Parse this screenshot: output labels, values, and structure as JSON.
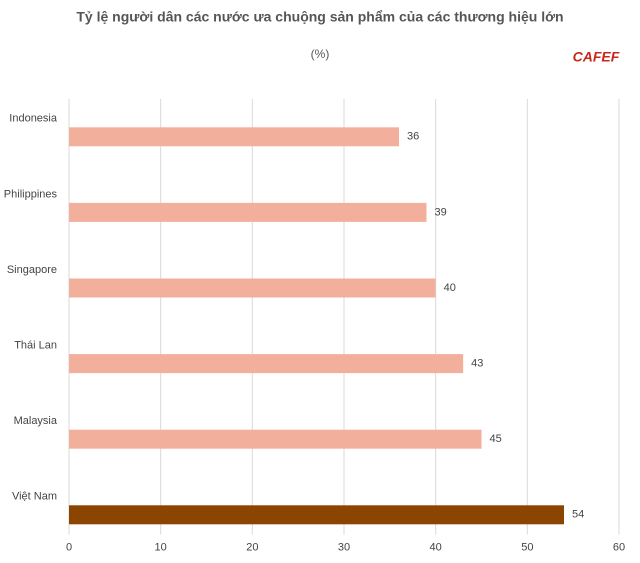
{
  "chart_data": {
    "type": "bar",
    "orientation": "horizontal",
    "title": "Tỷ lệ người dân các nước ưa chuộng sản phẩm của các thương hiệu lớn",
    "subtitle": "(%)",
    "watermark": "CAFEF",
    "categories": [
      "Indonesia",
      "Philippines",
      "Singapore",
      "Thái Lan",
      "Malaysia",
      "Việt Nam"
    ],
    "values": [
      36,
      39,
      40,
      43,
      45,
      54
    ],
    "colors": [
      "#f2b09c",
      "#f2b09c",
      "#f2b09c",
      "#f2b09c",
      "#f2b09c",
      "#8b4500"
    ],
    "xlim": [
      0,
      60
    ],
    "xticks": [
      0,
      10,
      20,
      30,
      40,
      50,
      60
    ],
    "grid": true
  }
}
